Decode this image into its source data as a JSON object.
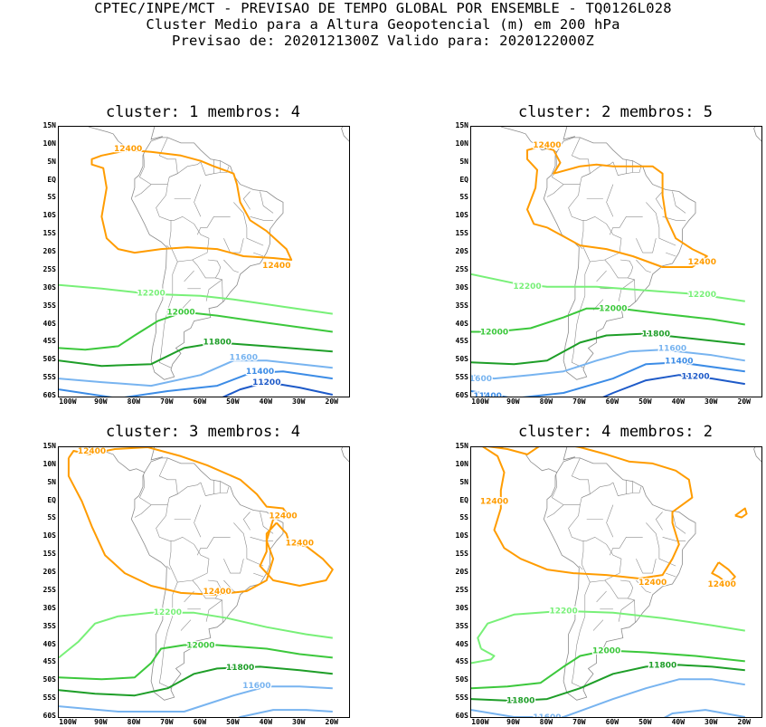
{
  "header": {
    "line1": "CPTEC/INPE/MCT - PREVISAO DE TEMPO GLOBAL POR ENSEMBLE - TQ0126L028",
    "line2": "Cluster Medio para a Altura Geopotencial (m) em 200 hPa",
    "line3": "Previsao de: 2020121300Z   Valido para: 2020122000Z"
  },
  "lat_labels": [
    "15N",
    "10N",
    "5N",
    "EQ",
    "5S",
    "10S",
    "15S",
    "20S",
    "25S",
    "30S",
    "35S",
    "40S",
    "45S",
    "50S",
    "55S",
    "60S"
  ],
  "lon_labels": [
    "100W",
    "90W",
    "80W",
    "70W",
    "60W",
    "50W",
    "40W",
    "30W",
    "20W"
  ],
  "colors": {
    "12400": "#ff9c00",
    "12200": "#78f078",
    "12000": "#3cc83c",
    "11800": "#1e9e28",
    "11600": "#78b4f0",
    "11400": "#3c8ce6",
    "11200": "#1e5ac8",
    "coast": "#8c8c8c"
  },
  "panels": [
    {
      "title": "cluster: 1   membros: 4",
      "contours": [
        {
          "value": "12400",
          "label": "12400"
        },
        {
          "value": "12200",
          "label": "12200"
        },
        {
          "value": "12000",
          "label": "12000"
        },
        {
          "value": "11800",
          "label": "11800"
        },
        {
          "value": "11600",
          "label": "11600"
        },
        {
          "value": "11400",
          "label": "11400"
        },
        {
          "value": "11200",
          "label": "11200"
        }
      ]
    },
    {
      "title": "cluster: 2   membros: 5",
      "contours": [
        {
          "value": "12400",
          "label": "12400"
        },
        {
          "value": "12200",
          "label": "12200"
        },
        {
          "value": "12000",
          "label": "12000"
        },
        {
          "value": "11800",
          "label": "11800"
        },
        {
          "value": "11600",
          "label": "11600"
        },
        {
          "value": "11400",
          "label": "11400"
        },
        {
          "value": "11200",
          "label": "11200"
        }
      ]
    },
    {
      "title": "cluster: 3   membros: 4",
      "contours": [
        {
          "value": "12400",
          "label": "12400"
        },
        {
          "value": "12200",
          "label": "12200"
        },
        {
          "value": "12000",
          "label": "12000"
        },
        {
          "value": "11800",
          "label": "11800"
        },
        {
          "value": "11600",
          "label": "11600"
        }
      ]
    },
    {
      "title": "cluster: 4   membros: 2",
      "contours": [
        {
          "value": "12400",
          "label": "12400"
        },
        {
          "value": "12200",
          "label": "12200"
        },
        {
          "value": "12000",
          "label": "12000"
        },
        {
          "value": "11800",
          "label": "11800"
        },
        {
          "value": "11600",
          "label": "11600"
        }
      ]
    }
  ]
}
